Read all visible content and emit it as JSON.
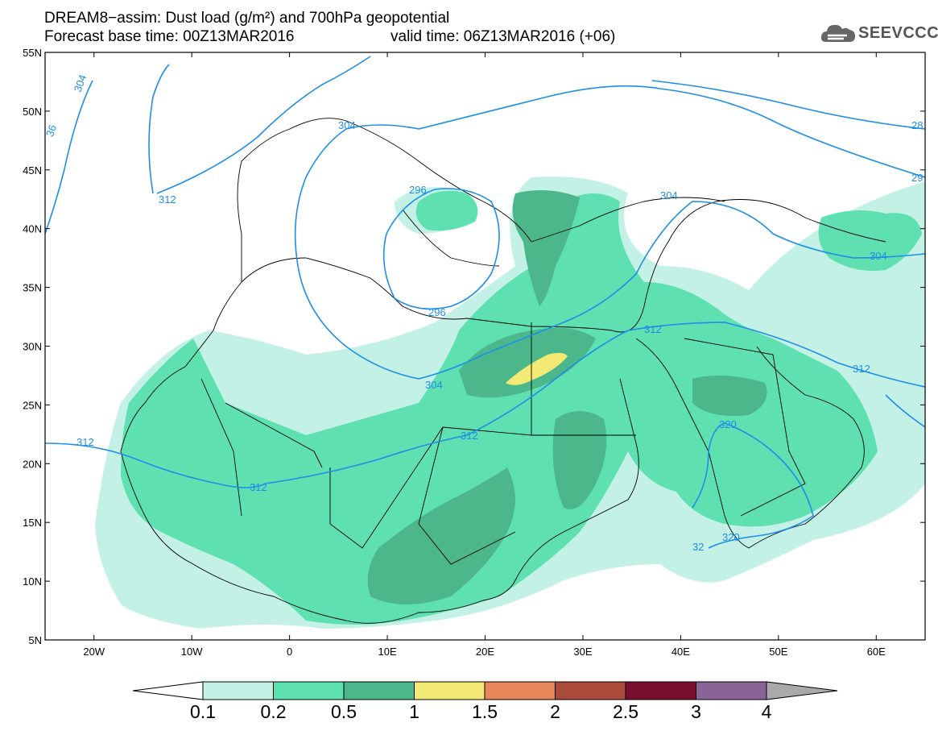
{
  "title": {
    "line1": "DREAM8−assim: Dust load (g/m²) and 700hPa geopotential",
    "line2_base": "Forecast base time: 00Z13MAR2016",
    "line2_valid": "valid time: 06Z13MAR2016 (+06)"
  },
  "logo": {
    "text": "SEEVCCC",
    "icon": "cloud-icon"
  },
  "axes": {
    "lat_ticks": [
      "55N",
      "50N",
      "45N",
      "40N",
      "35N",
      "30N",
      "25N",
      "20N",
      "15N",
      "10N",
      "5N"
    ],
    "lon_ticks": [
      "20W",
      "10W",
      "0",
      "10E",
      "20E",
      "30E",
      "40E",
      "50E",
      "60E"
    ],
    "lat_range": [
      5,
      55
    ],
    "lon_range": [
      -25,
      65
    ]
  },
  "contours": {
    "labels": [
      "304",
      "304",
      "304",
      "296",
      "296",
      "312",
      "312",
      "312",
      "312",
      "312",
      "304",
      "304",
      "312",
      "312",
      "320",
      "320",
      "32",
      "28",
      "29",
      "36"
    ]
  },
  "colorbar": {
    "labels": [
      "0.1",
      "0.2",
      "0.5",
      "1",
      "1.5",
      "2",
      "2.5",
      "3",
      "4"
    ],
    "colors": [
      "#c3f1e6",
      "#5ee0b1",
      "#4db78c",
      "#f2ea74",
      "#e8875a",
      "#aa4a3b",
      "#7a0e2e",
      "#8b6497",
      "#aaaaaa"
    ]
  },
  "colors": {
    "dust_light": "#c3f1e6",
    "dust_mid": "#5ee0b1",
    "dust_dark": "#4db78c",
    "dust_yellow": "#f2ea74",
    "contour": "#1e8ee8",
    "coast": "#000000"
  }
}
